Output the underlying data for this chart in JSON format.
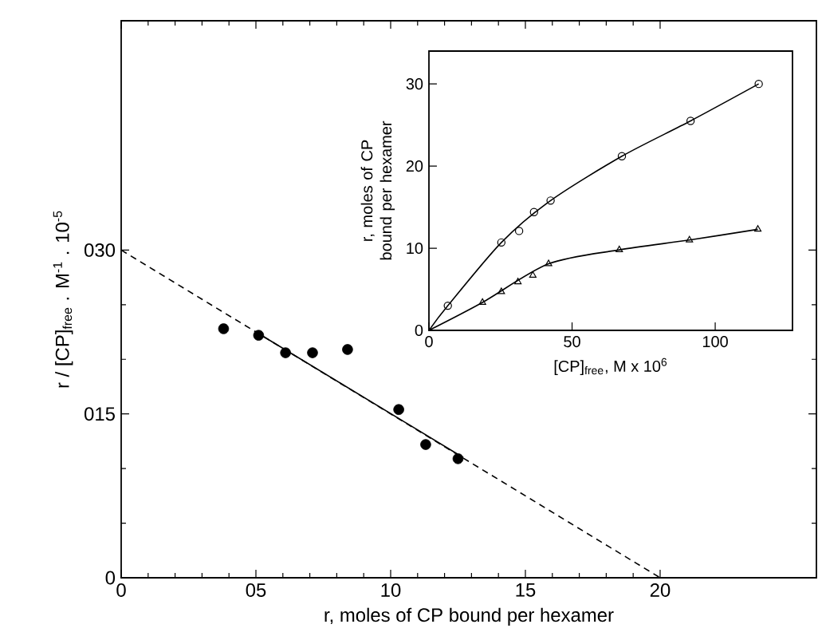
{
  "chart_data": [
    {
      "type": "scatter",
      "xlabel": "r, moles of CP bound per hexamer",
      "ylabel": "r / [CP]$_{free}$ . M$^{-1}$ . 10$^{-5}$",
      "xlim": [
        0,
        25.8
      ],
      "ylim": [
        0,
        51
      ],
      "xticks": [
        0,
        {
          "value": 5,
          "label": "05"
        },
        10,
        15,
        20
      ],
      "yticks": [
        0,
        {
          "value": 15,
          "label": "015"
        },
        {
          "value": 30,
          "label": "030"
        }
      ],
      "series": [
        {
          "marker": "circle",
          "color": "#000000",
          "x": [
            3.8,
            5.1,
            6.1,
            7.1,
            8.4,
            10.3,
            11.3,
            12.5
          ],
          "values": [
            22.8,
            22.2,
            20.6,
            20.6,
            20.9,
            15.4,
            12.2,
            10.9
          ]
        },
        {
          "type": "line",
          "line_style": "dashed",
          "color": "#000000",
          "x": [
            0,
            20
          ],
          "values": [
            30,
            0
          ]
        },
        {
          "type": "line",
          "line_style": "solid",
          "color": "#000000",
          "x": [
            5,
            12.7
          ],
          "values": [
            22.5,
            11
          ]
        }
      ]
    },
    {
      "type": "scatter",
      "xlabel": "[CP]$_{free}$, M x 10$^{6}$",
      "ylabel": "r, moles of CP bound per hexamer",
      "xlim": [
        0,
        127
      ],
      "ylim": [
        0,
        34
      ],
      "xticks": [
        0,
        50,
        100
      ],
      "yticks": [
        0,
        10,
        20,
        30
      ],
      "series": [
        {
          "marker": "circle",
          "color": "#000000",
          "x": [
            6.6,
            25.3,
            31.5,
            36.7,
            42.5,
            67.4,
            91.4,
            115.2
          ],
          "values": [
            3.0,
            10.7,
            12.1,
            14.4,
            15.8,
            21.2,
            25.5,
            30.0
          ]
        },
        {
          "marker": "triangle",
          "color": "#000000",
          "x": [
            18.7,
            25.3,
            31.1,
            36.3,
            41.8,
            66.5,
            91.0,
            114.9
          ],
          "values": [
            3.4,
            4.7,
            5.9,
            6.7,
            8.1,
            9.8,
            11.0,
            12.3
          ]
        },
        {
          "type": "line",
          "line_style": "solid",
          "color": "#000000",
          "x": [
            0,
            6.6,
            25.3,
            42.5,
            67.4,
            91.4,
            115.2
          ],
          "values": [
            0,
            3.0,
            10.7,
            15.8,
            21.2,
            25.5,
            30.0
          ]
        },
        {
          "type": "line",
          "line_style": "solid",
          "color": "#000000",
          "x": [
            0,
            18.7,
            41.8,
            66.5,
            91.0,
            114.9
          ],
          "values": [
            0,
            3.4,
            8.1,
            9.8,
            11.0,
            12.3
          ]
        }
      ]
    }
  ]
}
